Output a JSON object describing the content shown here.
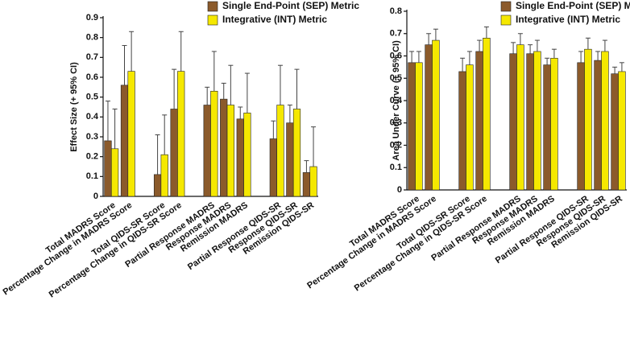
{
  "chart_data": [
    {
      "type": "bar",
      "ylabel": "Effect Size (+ 95% CI)",
      "categories": [
        "Total MADRS Score",
        "Percentage Change in MADRS Score",
        null,
        "Total QIDS-SR Score",
        "Percentage Change in QIDS-SR Score",
        null,
        "Partial Response MADRS",
        "Response MADRS",
        "Remission MADRS",
        null,
        "Partial Response QIDS-SR",
        "Response QIDS-SR",
        "Remission QIDS-SR"
      ],
      "series": [
        {
          "name": "Single End-Point (SEP) Metric",
          "color": "#8b5a2b",
          "values": [
            0.28,
            0.56,
            null,
            0.11,
            0.44,
            null,
            0.46,
            0.49,
            0.39,
            null,
            0.29,
            0.37,
            0.12
          ],
          "errors": [
            0.2,
            0.2,
            null,
            0.2,
            0.2,
            null,
            0.09,
            0.08,
            0.06,
            null,
            0.09,
            0.09,
            0.06
          ]
        },
        {
          "name": "Integrative (INT) Metric",
          "color": "#f5e800",
          "values": [
            0.24,
            0.63,
            null,
            0.21,
            0.63,
            null,
            0.53,
            0.46,
            0.42,
            null,
            0.46,
            0.44,
            0.15
          ],
          "errors": [
            0.2,
            0.2,
            null,
            0.2,
            0.2,
            null,
            0.2,
            0.2,
            0.2,
            null,
            0.2,
            0.2,
            0.2
          ]
        }
      ],
      "ylim": [
        0,
        0.9
      ],
      "yticks": [
        0,
        0.1,
        0.2,
        0.3,
        0.4,
        0.5,
        0.6,
        0.7,
        0.8,
        0.9
      ]
    },
    {
      "type": "bar",
      "ylabel": "Area Under Curve (+ 95% CI)",
      "categories": [
        "Total MADRS Score",
        "Percentage Change in MADRS Score",
        null,
        "Total QIDS-SR Score",
        "Percentage Change in QIDS-SR Score",
        null,
        "Partial Response MADRS",
        "Response MADRS",
        "Remission MADRS",
        null,
        "Partial Response QIDS-SR",
        "Response QIDS-SR",
        "Remission QIDS-SR"
      ],
      "series": [
        {
          "name": "Single End-Point (SEP) Metric",
          "color": "#8b5a2b",
          "values": [
            0.57,
            0.65,
            null,
            0.53,
            0.62,
            null,
            0.61,
            0.61,
            0.56,
            null,
            0.57,
            0.58,
            0.52
          ],
          "errors": [
            0.05,
            0.05,
            null,
            0.06,
            0.05,
            null,
            0.05,
            0.04,
            0.03,
            null,
            0.05,
            0.04,
            0.03
          ]
        },
        {
          "name": "Integrative (INT) Metric",
          "color": "#f5e800",
          "values": [
            0.57,
            0.67,
            null,
            0.56,
            0.68,
            null,
            0.65,
            0.62,
            0.59,
            null,
            0.63,
            0.62,
            0.53
          ],
          "errors": [
            0.05,
            0.05,
            null,
            0.06,
            0.05,
            null,
            0.05,
            0.05,
            0.04,
            null,
            0.05,
            0.05,
            0.04
          ]
        }
      ],
      "ylim": [
        0,
        0.8
      ],
      "yticks": [
        0,
        0.1,
        0.2,
        0.3,
        0.4,
        0.5,
        0.6,
        0.7,
        0.8
      ]
    }
  ]
}
